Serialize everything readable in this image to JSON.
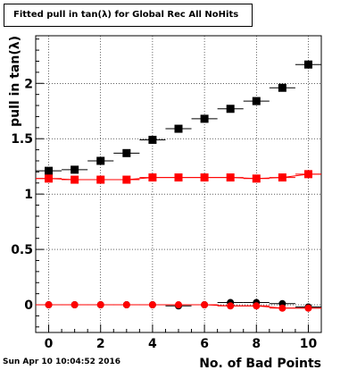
{
  "chart_data": {
    "type": "scatter",
    "title": "Fitted pull in tan(λ) for Global Rec All NoHits",
    "xlabel": "No. of Bad Points",
    "ylabel": "pull in tan(λ)",
    "xlim": [
      -0.5,
      10.5
    ],
    "ylim": [
      -0.25,
      2.43
    ],
    "grid": true,
    "xticks": [
      0,
      2,
      4,
      6,
      8,
      10
    ],
    "yticks": [
      0,
      0.5,
      1,
      1.5,
      2
    ],
    "xtick_labels": [
      "0",
      "2",
      "4",
      "6",
      "8",
      "10"
    ],
    "ytick_labels": [
      "0",
      "0.5",
      "1",
      "1.5",
      "2"
    ],
    "series": [
      {
        "marker": "square",
        "color": "#000000",
        "x": [
          0,
          1,
          2,
          3,
          4,
          5,
          6,
          7,
          8,
          9,
          10
        ],
        "y": [
          1.21,
          1.22,
          1.3,
          1.37,
          1.49,
          1.59,
          1.68,
          1.77,
          1.84,
          1.96,
          2.17
        ]
      },
      {
        "marker": "square",
        "color": "#ff0000",
        "fit_line": true,
        "x": [
          0,
          1,
          2,
          3,
          4,
          5,
          6,
          7,
          8,
          9,
          10
        ],
        "y": [
          1.14,
          1.13,
          1.13,
          1.13,
          1.15,
          1.15,
          1.15,
          1.15,
          1.14,
          1.15,
          1.18
        ]
      },
      {
        "marker": "circle",
        "color": "#000000",
        "x": [
          0,
          1,
          2,
          3,
          4,
          5,
          6,
          7,
          8,
          9,
          10
        ],
        "y": [
          0.0,
          0.0,
          0.0,
          0.0,
          0.0,
          -0.01,
          0.0,
          0.02,
          0.02,
          0.01,
          -0.02
        ]
      },
      {
        "marker": "circle",
        "color": "#ff0000",
        "fit_line": true,
        "x": [
          0,
          1,
          2,
          3,
          4,
          5,
          6,
          7,
          8,
          9,
          10
        ],
        "y": [
          0.0,
          0.0,
          0.0,
          0.0,
          0.0,
          0.0,
          0.0,
          -0.01,
          -0.01,
          -0.03,
          -0.03
        ]
      }
    ]
  },
  "footer": {
    "timestamp": "Sun Apr 10 10:04:52 2016"
  }
}
